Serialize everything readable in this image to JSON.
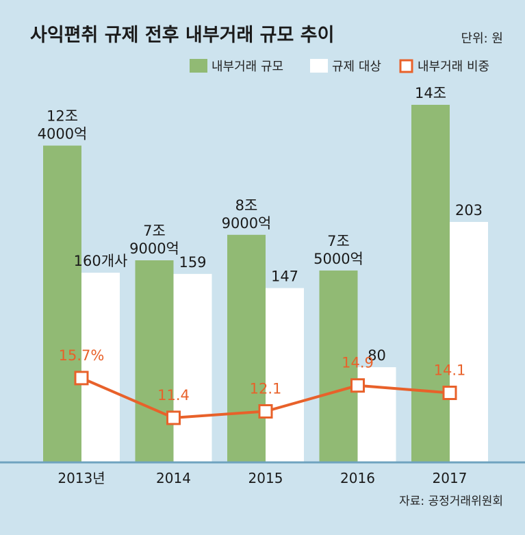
{
  "chart_data": {
    "type": "bar",
    "title": "사익편취 규제 전후 내부거래 규모 추이",
    "unit": "단위: 원",
    "source": "자료: 공정거래위원회",
    "categories": [
      "2013년",
      "2014",
      "2015",
      "2016",
      "2017"
    ],
    "series": [
      {
        "name": "내부거래 규모",
        "type": "bar",
        "color": "#91ba74",
        "values": [
          124000,
          79000,
          89000,
          75000,
          140000
        ],
        "labels": [
          [
            "12조",
            "4000억"
          ],
          [
            "7조",
            "9000억"
          ],
          [
            "8조",
            "9000억"
          ],
          [
            "7조",
            "5000억"
          ],
          [
            "14조"
          ]
        ]
      },
      {
        "name": "규제 대상",
        "type": "bar",
        "color": "#ffffff",
        "values": [
          160,
          159,
          147,
          80,
          203
        ],
        "labels": [
          [
            "160개사"
          ],
          [
            "159"
          ],
          [
            "147"
          ],
          [
            "80"
          ],
          [
            "203"
          ]
        ]
      },
      {
        "name": "내부거래 비중",
        "type": "line",
        "color": "#e8612a",
        "values": [
          15.7,
          11.4,
          12.1,
          14.9,
          14.1
        ],
        "labels": [
          [
            "15.7%"
          ],
          [
            "11.4"
          ],
          [
            "12.1"
          ],
          [
            "14.9"
          ],
          [
            "14.1"
          ]
        ]
      }
    ],
    "grid": false,
    "legend_position": "top-right"
  }
}
